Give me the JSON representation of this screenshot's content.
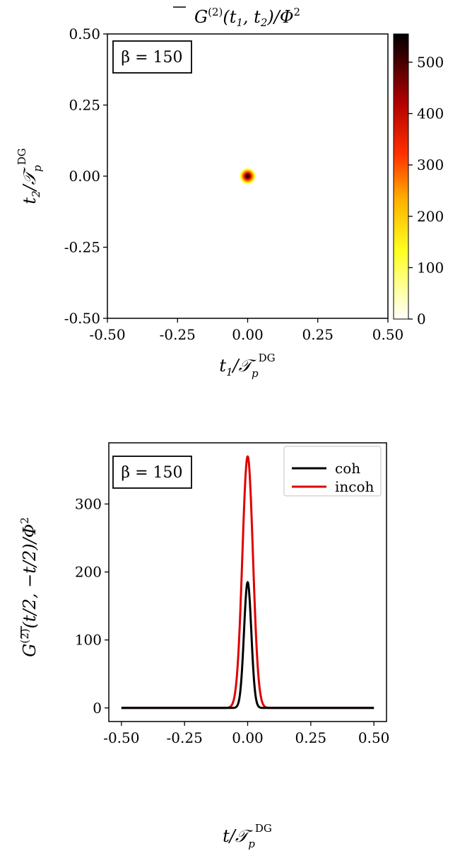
{
  "chart_data": [
    {
      "type": "heatmap",
      "title": "G̅(2)(t1, t2)/Φ2",
      "title_parts": {
        "main": "G",
        "sup": "(2)",
        "args": "(t",
        "s1": "1",
        "mid": ", t",
        "s2": "2",
        "end": ")/Φ",
        "pow": "2"
      },
      "xlabel_parts": {
        "v": "t",
        "vs": "1",
        "slash": "/𝒯",
        "sub": "p",
        "sup": "DG"
      },
      "ylabel_parts": {
        "v": "t",
        "vs": "2",
        "slash": "/𝒯",
        "sub": "p",
        "sup": "DG"
      },
      "xlim": [
        -0.5,
        0.5
      ],
      "ylim": [
        -0.5,
        0.5
      ],
      "x_ticks": [
        -0.5,
        -0.25,
        0.0,
        0.25,
        0.5
      ],
      "x_tick_labels": [
        "-0.50",
        "-0.25",
        "0.00",
        "0.25",
        "0.50"
      ],
      "y_ticks": [
        -0.5,
        -0.25,
        0.0,
        0.25,
        0.5
      ],
      "y_tick_labels": [
        "-0.50",
        "-0.25",
        "0.00",
        "0.25",
        "0.50"
      ],
      "peak": {
        "x": 0.0,
        "y": 0.0,
        "max_value": 555,
        "sigma": 0.018
      },
      "colormap": "hot_r",
      "colorbar": {
        "range": [
          0,
          555
        ],
        "ticks": [
          0,
          100,
          200,
          300,
          400,
          500
        ],
        "tick_labels": [
          "0",
          "100",
          "200",
          "300",
          "400",
          "500"
        ],
        "stops": [
          "#ffffff",
          "#ffff40",
          "#ffa000",
          "#ff2a00",
          "#a80000",
          "#000000"
        ]
      },
      "annotation": "β = 150"
    },
    {
      "type": "line",
      "ylabel_parts": {
        "main": "G",
        "sup": "(2)",
        "args": "(t/2, −t/2)/Φ",
        "pow": "2"
      },
      "xlabel_parts": {
        "v": "t",
        "slash": "/𝒯",
        "sub": "p",
        "sup": "DG"
      },
      "xlim": [
        -0.55,
        0.55
      ],
      "ylim": [
        -20,
        390
      ],
      "x_ticks": [
        -0.5,
        -0.25,
        0.0,
        0.25,
        0.5
      ],
      "x_tick_labels": [
        "-0.50",
        "-0.25",
        "0.00",
        "0.25",
        "0.50"
      ],
      "y_ticks": [
        0,
        100,
        200,
        300
      ],
      "y_tick_labels": [
        "0",
        "100",
        "200",
        "300"
      ],
      "series": [
        {
          "name": "coh",
          "color": "#000000",
          "peak": 185,
          "center": 0.0,
          "sigma": 0.0145,
          "x_range": [
            -0.5,
            0.5
          ]
        },
        {
          "name": "incoh",
          "color": "#e00000",
          "peak": 370,
          "center": 0.0,
          "sigma": 0.021,
          "x_range": [
            -0.5,
            0.5
          ]
        }
      ],
      "legend_position": "top-right",
      "annotation": "β = 150",
      "grid": false
    }
  ]
}
